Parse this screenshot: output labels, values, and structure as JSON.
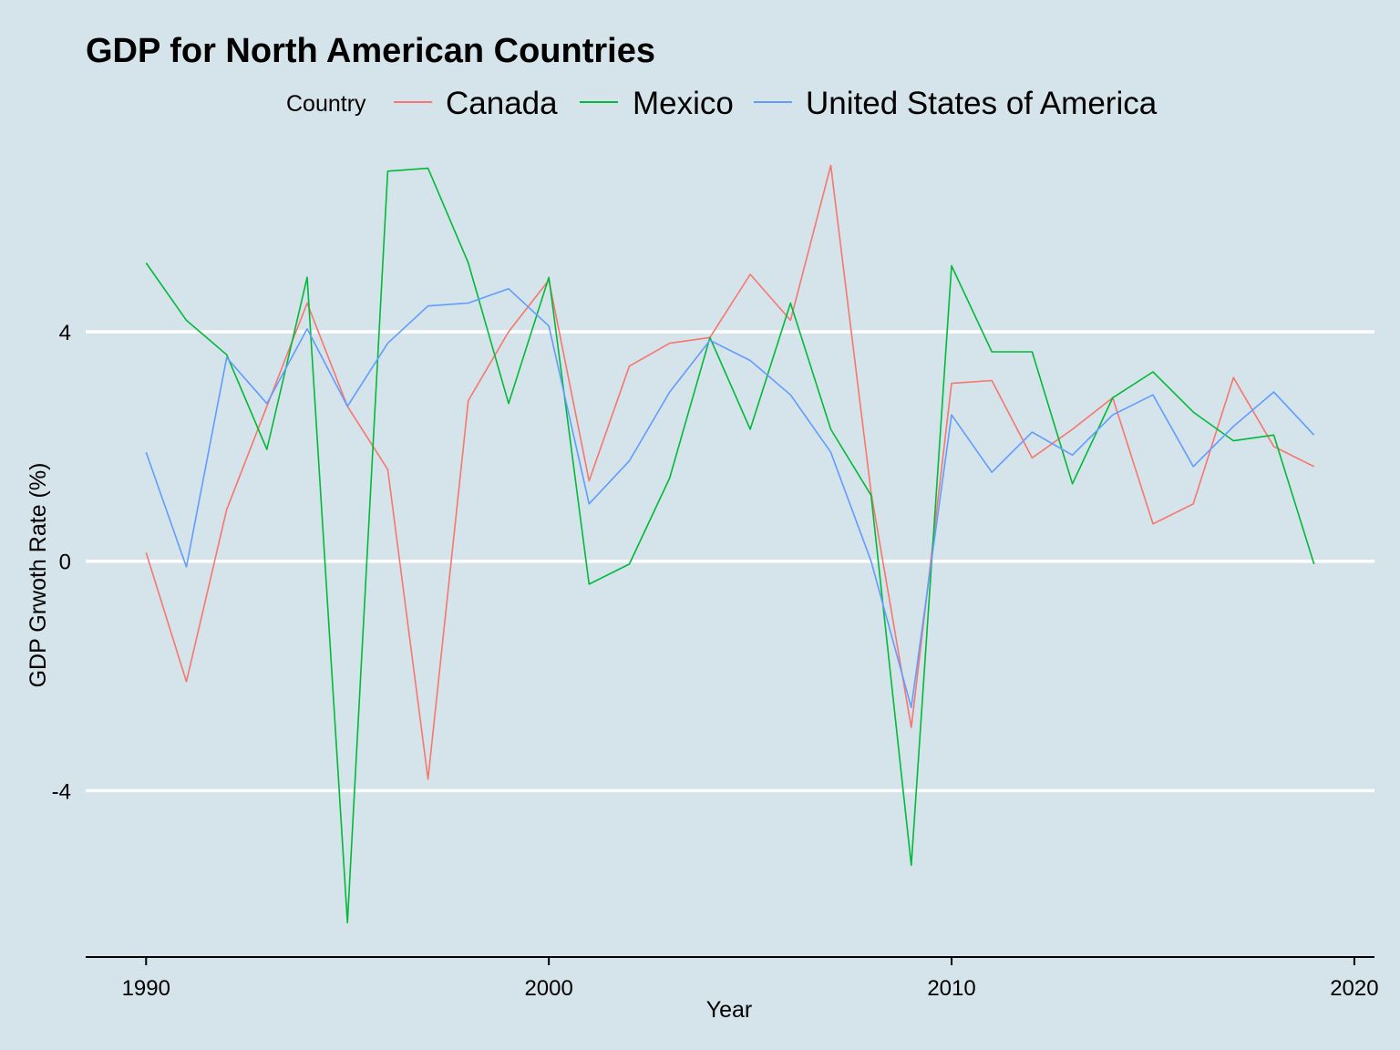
{
  "chart_data": {
    "type": "line",
    "title": "GDP for North American Countries",
    "xlabel": "Year",
    "ylabel": "GDP Grwoth Rate (%)",
    "legend_title": "Country",
    "legend_position": "top",
    "grid": true,
    "xlim": [
      1988.5,
      2020.5
    ],
    "ylim": [
      -6.9,
      7.4
    ],
    "x_ticks": [
      1990,
      2000,
      2010,
      2020
    ],
    "y_ticks": [
      4,
      0,
      -4
    ],
    "x": [
      1990,
      1991,
      1992,
      1993,
      1994,
      1995,
      1996,
      1997,
      1998,
      1999,
      2000,
      2001,
      2002,
      2003,
      2004,
      2005,
      2006,
      2007,
      2008,
      2009,
      2010,
      2011,
      2012,
      2013,
      2014,
      2015,
      2016,
      2017,
      2018,
      2019
    ],
    "series": [
      {
        "name": "Canada",
        "color": "#F8766D",
        "values": [
          0.15,
          -2.1,
          0.9,
          2.7,
          4.5,
          2.7,
          1.6,
          -3.8,
          2.8,
          4.0,
          4.9,
          1.4,
          3.4,
          3.8,
          3.9,
          5.0,
          4.2,
          6.9,
          1.2,
          -2.9,
          3.1,
          3.15,
          1.8,
          2.3,
          2.85,
          0.65,
          1.0,
          3.2,
          2.0,
          1.65
        ]
      },
      {
        "name": "Mexico",
        "color": "#00BA38",
        "values": [
          5.2,
          4.2,
          3.6,
          1.95,
          4.95,
          -6.3,
          6.8,
          6.85,
          5.2,
          2.75,
          4.95,
          -0.4,
          -0.05,
          1.45,
          3.9,
          2.3,
          4.5,
          2.3,
          1.15,
          -5.3,
          5.15,
          3.65,
          3.65,
          1.35,
          2.85,
          3.3,
          2.6,
          2.1,
          2.2,
          -0.05
        ]
      },
      {
        "name": "United States of America",
        "color": "#619CFF",
        "values": [
          1.9,
          -0.1,
          3.55,
          2.75,
          4.05,
          2.7,
          3.8,
          4.45,
          4.5,
          4.75,
          4.1,
          1.0,
          1.75,
          2.95,
          3.85,
          3.5,
          2.9,
          1.9,
          0.0,
          -2.55,
          2.55,
          1.55,
          2.25,
          1.85,
          2.55,
          2.9,
          1.65,
          2.35,
          2.95,
          2.2
        ]
      }
    ]
  }
}
